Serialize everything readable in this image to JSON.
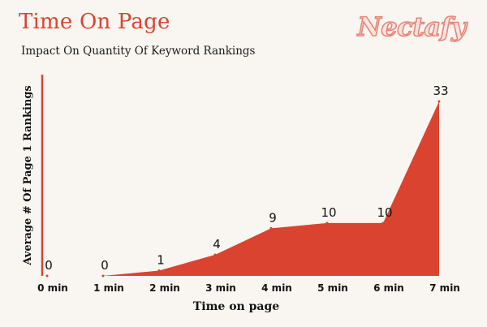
{
  "brand": {
    "logo_text": "Nectafy",
    "accent_color": "#d9432f"
  },
  "chart_data": {
    "type": "area",
    "title": "Time On Page",
    "subtitle": "Impact On Quantity Of Keyword Rankings",
    "xlabel": "Time on page",
    "ylabel": "Average # Of Page 1 Rankings",
    "categories": [
      "0 min",
      "1 min",
      "2 min",
      "3 min",
      "4 min",
      "5 min",
      "6 min",
      "7 min"
    ],
    "values": [
      0,
      0,
      1,
      4,
      9,
      10,
      10,
      33
    ],
    "data_labels": [
      "0",
      "0",
      "1",
      "4",
      "9",
      "10",
      "10",
      "33"
    ],
    "ylim": [
      0,
      33
    ],
    "grid": false,
    "legend": "none",
    "fill_color": "#d9432f"
  }
}
